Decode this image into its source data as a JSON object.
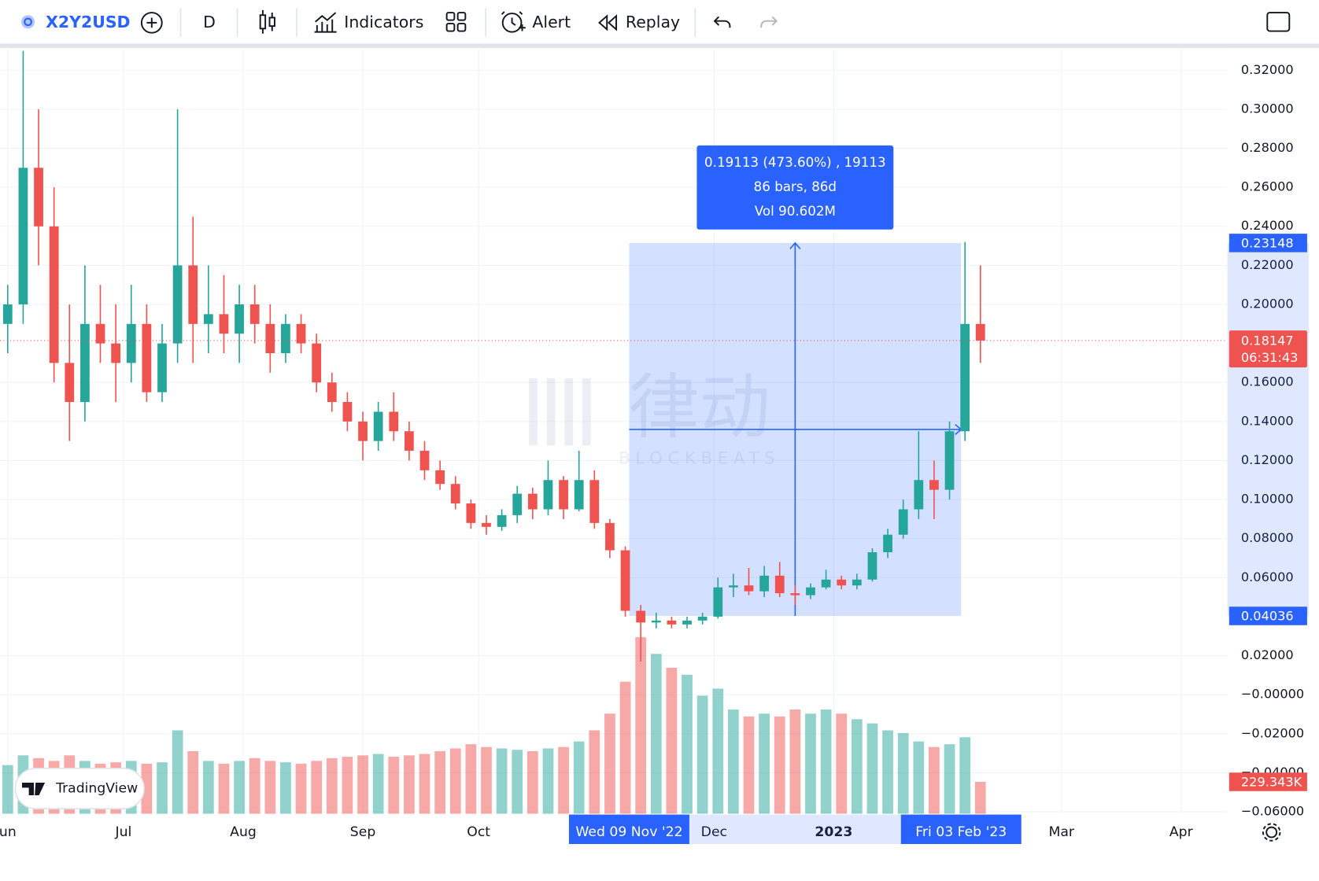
{
  "toolbar": {
    "symbol": "X2Y2USD",
    "interval": "D",
    "indicators": "Indicators",
    "alert": "Alert",
    "replay": "Replay"
  },
  "logo": "TradingView",
  "watermark": {
    "title": "律动",
    "subtitle": "BLOCKBEATS"
  },
  "chart_data": {
    "type": "candlestick",
    "colors": {
      "up": "#26a69a",
      "down": "#ef5350"
    },
    "x": [
      "2022-06-01",
      "2022-06-05",
      "2022-06-09",
      "2022-06-13",
      "2022-06-17",
      "2022-06-21",
      "2022-06-25",
      "2022-06-29",
      "2022-07-03",
      "2022-07-07",
      "2022-07-11",
      "2022-07-15",
      "2022-07-19",
      "2022-07-23",
      "2022-07-27",
      "2022-07-31",
      "2022-08-04",
      "2022-08-08",
      "2022-08-12",
      "2022-08-16",
      "2022-08-20",
      "2022-08-24",
      "2022-08-28",
      "2022-09-01",
      "2022-09-05",
      "2022-09-09",
      "2022-09-13",
      "2022-09-17",
      "2022-09-21",
      "2022-09-25",
      "2022-09-29",
      "2022-10-03",
      "2022-10-07",
      "2022-10-11",
      "2022-10-15",
      "2022-10-19",
      "2022-10-23",
      "2022-10-27",
      "2022-10-31",
      "2022-11-04",
      "2022-11-08",
      "2022-11-12",
      "2022-11-16",
      "2022-11-20",
      "2022-11-24",
      "2022-11-28",
      "2022-12-02",
      "2022-12-06",
      "2022-12-10",
      "2022-12-14",
      "2022-12-18",
      "2022-12-22",
      "2022-12-26",
      "2022-12-30",
      "2023-01-03",
      "2023-01-07",
      "2023-01-11",
      "2023-01-15",
      "2023-01-19",
      "2023-01-23",
      "2023-01-27",
      "2023-01-31",
      "2023-02-04",
      "2023-02-08"
    ],
    "open": [
      0.19,
      0.2,
      0.27,
      0.24,
      0.17,
      0.15,
      0.19,
      0.18,
      0.17,
      0.19,
      0.155,
      0.18,
      0.22,
      0.19,
      0.195,
      0.185,
      0.2,
      0.19,
      0.175,
      0.19,
      0.18,
      0.16,
      0.15,
      0.14,
      0.13,
      0.145,
      0.135,
      0.125,
      0.115,
      0.108,
      0.098,
      0.088,
      0.086,
      0.092,
      0.103,
      0.095,
      0.11,
      0.095,
      0.11,
      0.088,
      0.074,
      0.043,
      0.037,
      0.038,
      0.036,
      0.038,
      0.04,
      0.055,
      0.056,
      0.053,
      0.061,
      0.052,
      0.051,
      0.055,
      0.059,
      0.056,
      0.059,
      0.073,
      0.082,
      0.095,
      0.11,
      0.105,
      0.135,
      0.19
    ],
    "high": [
      0.21,
      0.33,
      0.3,
      0.26,
      0.2,
      0.22,
      0.21,
      0.2,
      0.21,
      0.2,
      0.19,
      0.3,
      0.245,
      0.22,
      0.215,
      0.21,
      0.21,
      0.2,
      0.195,
      0.195,
      0.185,
      0.165,
      0.155,
      0.145,
      0.15,
      0.155,
      0.14,
      0.13,
      0.12,
      0.112,
      0.1,
      0.092,
      0.095,
      0.107,
      0.106,
      0.12,
      0.112,
      0.125,
      0.115,
      0.09,
      0.076,
      0.046,
      0.042,
      0.04,
      0.04,
      0.042,
      0.06,
      0.062,
      0.065,
      0.066,
      0.068,
      0.056,
      0.057,
      0.064,
      0.061,
      0.062,
      0.075,
      0.085,
      0.1,
      0.135,
      0.12,
      0.14,
      0.232,
      0.22
    ],
    "low": [
      0.175,
      0.19,
      0.22,
      0.16,
      0.13,
      0.14,
      0.17,
      0.15,
      0.16,
      0.15,
      0.15,
      0.17,
      0.17,
      0.175,
      0.175,
      0.17,
      0.18,
      0.165,
      0.17,
      0.175,
      0.155,
      0.145,
      0.135,
      0.12,
      0.125,
      0.13,
      0.12,
      0.11,
      0.105,
      0.095,
      0.085,
      0.082,
      0.084,
      0.088,
      0.09,
      0.092,
      0.09,
      0.094,
      0.085,
      0.07,
      0.04,
      0.017,
      0.034,
      0.034,
      0.034,
      0.036,
      0.039,
      0.05,
      0.051,
      0.05,
      0.05,
      0.046,
      0.049,
      0.054,
      0.054,
      0.054,
      0.058,
      0.07,
      0.08,
      0.09,
      0.09,
      0.1,
      0.13,
      0.17
    ],
    "close": [
      0.2,
      0.27,
      0.24,
      0.17,
      0.15,
      0.19,
      0.18,
      0.17,
      0.19,
      0.155,
      0.18,
      0.22,
      0.19,
      0.195,
      0.185,
      0.2,
      0.19,
      0.175,
      0.19,
      0.18,
      0.16,
      0.15,
      0.14,
      0.13,
      0.145,
      0.135,
      0.125,
      0.115,
      0.108,
      0.098,
      0.088,
      0.086,
      0.092,
      0.103,
      0.095,
      0.11,
      0.095,
      0.11,
      0.088,
      0.074,
      0.043,
      0.037,
      0.038,
      0.036,
      0.038,
      0.04,
      0.055,
      0.056,
      0.053,
      0.061,
      0.052,
      0.051,
      0.055,
      0.059,
      0.056,
      0.059,
      0.073,
      0.082,
      0.095,
      0.11,
      0.105,
      0.135,
      0.19,
      0.18147
    ],
    "volume": [
      350000,
      420000,
      400000,
      380000,
      420000,
      380000,
      360000,
      370000,
      380000,
      360000,
      370000,
      600000,
      450000,
      380000,
      360000,
      380000,
      400000,
      380000,
      370000,
      360000,
      380000,
      400000,
      410000,
      420000,
      430000,
      410000,
      420000,
      430000,
      450000,
      470000,
      500000,
      480000,
      470000,
      460000,
      450000,
      470000,
      480000,
      520000,
      600000,
      720000,
      950000,
      1270000,
      1150000,
      1050000,
      1000000,
      850000,
      900000,
      750000,
      700000,
      720000,
      700000,
      750000,
      720000,
      750000,
      720000,
      680000,
      650000,
      600000,
      580000,
      520000,
      480000,
      500000,
      550000,
      229343
    ],
    "last_volume_label": "229.343K",
    "countdown": "06:31:43",
    "xlim": [
      "2022-05-30",
      "2023-04-13"
    ],
    "xticks": [
      {
        "value": "2022-06-01",
        "label": "un"
      },
      {
        "value": "2022-07-01",
        "label": "Jul"
      },
      {
        "value": "2022-08-01",
        "label": "Aug"
      },
      {
        "value": "2022-09-01",
        "label": "Sep"
      },
      {
        "value": "2022-10-01",
        "label": "Oct"
      },
      {
        "value": "2022-12-01",
        "label": "Dec"
      },
      {
        "value": "2023-01-01",
        "label": "2023"
      },
      {
        "value": "2023-03-01",
        "label": "Mar"
      },
      {
        "value": "2023-04-01",
        "label": "Apr"
      }
    ],
    "ylim": [
      -0.061,
      0.331
    ],
    "yticks": [
      {
        "value": 0.32,
        "label": "0.32000"
      },
      {
        "value": 0.3,
        "label": "0.30000"
      },
      {
        "value": 0.28,
        "label": "0.28000"
      },
      {
        "value": 0.26,
        "label": "0.26000"
      },
      {
        "value": 0.24,
        "label": "0.24000"
      },
      {
        "value": 0.22,
        "label": "0.22000"
      },
      {
        "value": 0.2,
        "label": "0.20000"
      },
      {
        "value": 0.16,
        "label": "0.16000"
      },
      {
        "value": 0.14,
        "label": "0.14000"
      },
      {
        "value": 0.12,
        "label": "0.12000"
      },
      {
        "value": 0.1,
        "label": "0.10000"
      },
      {
        "value": 0.08,
        "label": "0.08000"
      },
      {
        "value": 0.06,
        "label": "0.06000"
      },
      {
        "value": 0.02,
        "label": "0.02000"
      },
      {
        "value": 0,
        "label": "−0.00000"
      },
      {
        "value": -0.02,
        "label": "−0.02000"
      },
      {
        "value": -0.04,
        "label": "−0.04000"
      },
      {
        "value": -0.06,
        "label": "−0.06000"
      }
    ],
    "grid": true,
    "measure": {
      "start": "2022-11-09",
      "end": "2023-02-03",
      "start_label": "Wed 09 Nov '22",
      "end_label": "Fri 03 Feb '23",
      "from": 0.04036,
      "to": 0.23148,
      "lines": [
        "0.19113 (473.60%) , 19113",
        "86 bars, 86d",
        "Vol 90.602M"
      ]
    }
  }
}
